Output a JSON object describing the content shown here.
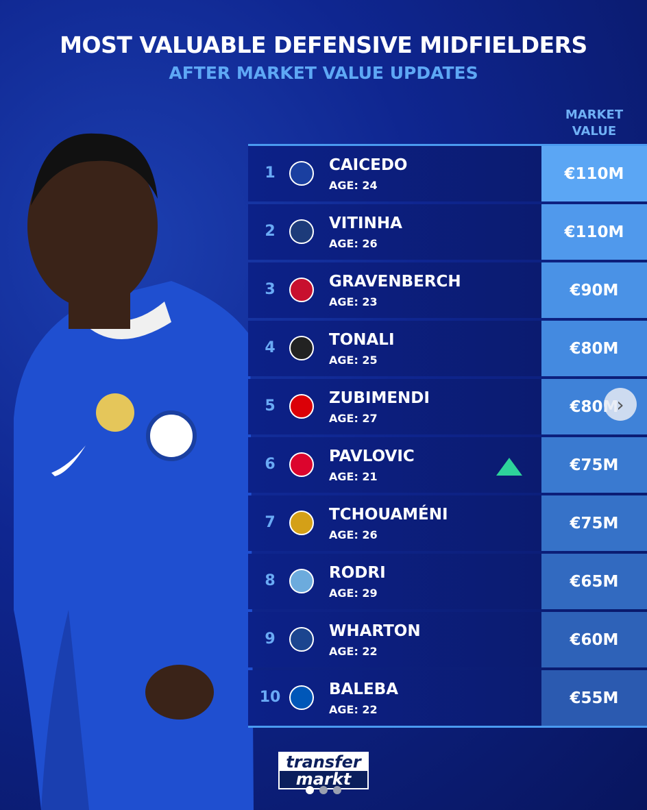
{
  "header": {
    "title": "MOST VALUABLE DEFENSIVE MIDFIELDERS",
    "subtitle": "AFTER MARKET VALUE UPDATES",
    "column_header": "MARKET VALUE"
  },
  "rows": [
    {
      "rank": "1",
      "name": "CAICEDO",
      "age": "AGE: 24",
      "value": "€110M",
      "club_icon": "chelsea-crest",
      "crest_color": "#1a3fa0",
      "value_bg": "#5ba6f4"
    },
    {
      "rank": "2",
      "name": "VITINHA",
      "age": "AGE: 26",
      "value": "€110M",
      "club_icon": "psg-crest",
      "crest_color": "#1d3b7a",
      "value_bg": "#5099ec"
    },
    {
      "rank": "3",
      "name": "GRAVENBERCH",
      "age": "AGE: 23",
      "value": "€90M",
      "club_icon": "liverpool-crest",
      "crest_color": "#c8102e",
      "value_bg": "#4a92e6"
    },
    {
      "rank": "4",
      "name": "TONALI",
      "age": "AGE: 25",
      "value": "€80M",
      "club_icon": "newcastle-crest",
      "crest_color": "#222222",
      "value_bg": "#448ae0"
    },
    {
      "rank": "5",
      "name": "ZUBIMENDI",
      "age": "AGE: 27",
      "value": "€80M",
      "club_icon": "arsenal-crest",
      "crest_color": "#db0007",
      "value_bg": "#3f82d8"
    },
    {
      "rank": "6",
      "name": "PAVLOVIC",
      "age": "AGE: 21",
      "value": "€75M",
      "club_icon": "bayern-crest",
      "crest_color": "#dc052d",
      "value_bg": "#3a7ad0",
      "trend": "up"
    },
    {
      "rank": "7",
      "name": "TCHOUAMÉNI",
      "age": "AGE: 26",
      "value": "€75M",
      "club_icon": "real-madrid-crest",
      "crest_color": "#d4a017",
      "value_bg": "#3672c8"
    },
    {
      "rank": "8",
      "name": "RODRI",
      "age": "AGE: 29",
      "value": "€65M",
      "club_icon": "man-city-crest",
      "crest_color": "#6cabdd",
      "value_bg": "#326ac0"
    },
    {
      "rank": "9",
      "name": "WHARTON",
      "age": "AGE: 22",
      "value": "€60M",
      "club_icon": "crystal-palace-crest",
      "crest_color": "#1b458f",
      "value_bg": "#2e62b8"
    },
    {
      "rank": "10",
      "name": "BALEBA",
      "age": "AGE: 22",
      "value": "€55M",
      "club_icon": "brighton-crest",
      "crest_color": "#0057b8",
      "value_bg": "#2b5ab0"
    }
  ],
  "logo": {
    "line1": "transfer",
    "line2": "markt"
  },
  "carousel": {
    "current": 1,
    "total": 3
  },
  "colors": {
    "accent": "#5ea8f5",
    "trend_up": "#2ed39a"
  }
}
